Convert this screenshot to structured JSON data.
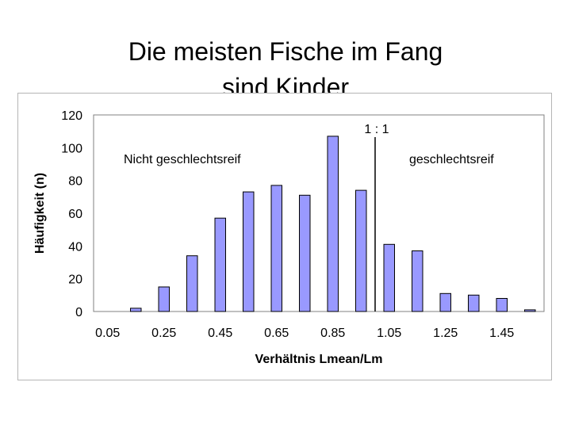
{
  "slide": {
    "title_line1": "Die meisten Fische im Fang",
    "title_line2": "sind Kinder"
  },
  "chart_data": {
    "type": "bar",
    "categories": [
      "0.05",
      "0.15",
      "0.25",
      "0.35",
      "0.45",
      "0.55",
      "0.65",
      "0.75",
      "0.85",
      "0.95",
      "1.05",
      "1.15",
      "1.25",
      "1.35",
      "1.45",
      "1.55"
    ],
    "values": [
      0,
      2,
      15,
      34,
      57,
      73,
      77,
      71,
      107,
      74,
      41,
      37,
      11,
      10,
      8,
      1
    ],
    "xlabel": "Verhältnis Lmean/Lm",
    "ylabel": "Häufigkeit (n)",
    "ylim": [
      0,
      120
    ],
    "yticks": [
      "0",
      "20",
      "40",
      "60",
      "80",
      "100",
      "120"
    ],
    "xtick_labels": [
      "0.05",
      "0.25",
      "0.45",
      "0.65",
      "0.85",
      "1.05",
      "1.25",
      "1.45"
    ],
    "bar_color": "#9999ff",
    "grid": false,
    "reference_line": {
      "x": 1.0,
      "label": "1 : 1"
    },
    "annotations": {
      "left": "Nicht geschlechtsreif",
      "right": "geschlechtsreif"
    }
  }
}
